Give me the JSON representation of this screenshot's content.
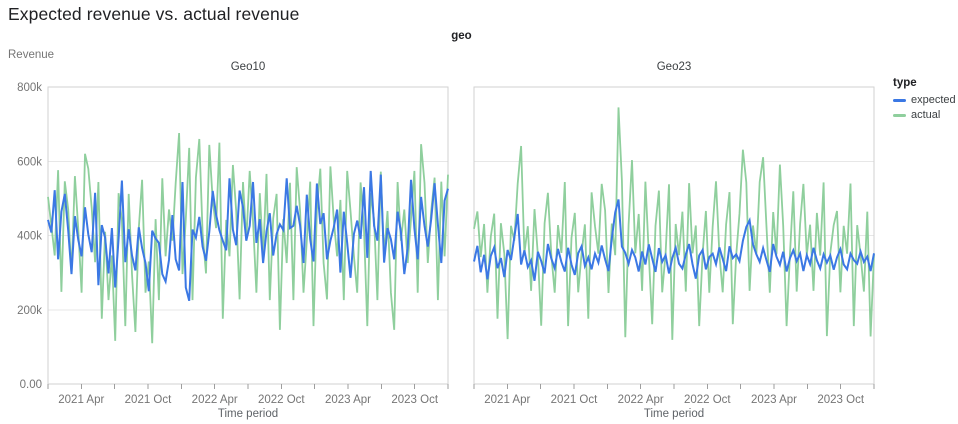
{
  "chart_data": {
    "type": "line",
    "title": "Expected revenue vs. actual revenue",
    "facet_field": "geo",
    "facets": [
      "Geo10",
      "Geo23"
    ],
    "legend_title": "type",
    "legend_position": "top-right",
    "xlabel": "Time period",
    "ylabel": "Revenue",
    "grid": "horizontal",
    "ylim": [
      0,
      800000
    ],
    "y_ticks": [
      {
        "value": 0,
        "label": "0.00"
      },
      {
        "value": 200000,
        "label": "200k"
      },
      {
        "value": 400000,
        "label": "400k"
      },
      {
        "value": 600000,
        "label": "600k"
      },
      {
        "value": 800000,
        "label": "800k"
      }
    ],
    "x_domain": [
      "2021-01",
      "2024-01"
    ],
    "x_minor_tick_every_months": 3,
    "x_label_months": [
      3,
      9,
      15,
      21,
      27,
      33
    ],
    "x_tick_labels": [
      "2021 Apr",
      "2021 Oct",
      "2022 Apr",
      "2022 Oct",
      "2023 Apr",
      "2023 Oct"
    ],
    "series": [
      {
        "name": "expected",
        "color": "#3b78e4"
      },
      {
        "name": "actual",
        "color": "#8fcf9d"
      }
    ],
    "values_unit": "revenue in thousands (k)",
    "points_per_series": 120,
    "panels": [
      {
        "facet": "Geo10",
        "expected": [
          442,
          408,
          522,
          336,
          464,
          512,
          414,
          296,
          452,
          388,
          344,
          476,
          403,
          355,
          515,
          266,
          428,
          394,
          298,
          420,
          260,
          392,
          548,
          328,
          417,
          346,
          306,
          422,
          366,
          326,
          250,
          413,
          392,
          380,
          296,
          276,
          334,
          455,
          336,
          306,
          544,
          260,
          224,
          416,
          394,
          450,
          370,
          332,
          410,
          520,
          456,
          414,
          386,
          360,
          554,
          416,
          374,
          521,
          476,
          386,
          426,
          544,
          380,
          444,
          326,
          411,
          460,
          346,
          404,
          430,
          415,
          554,
          420,
          426,
          480,
          427,
          326,
          510,
          390,
          330,
          540,
          431,
          460,
          336,
          386,
          421,
          470,
          300,
          464,
          380,
          286,
          404,
          440,
          391,
          530,
          340,
          574,
          426,
          386,
          564,
          327,
          420,
          390,
          336,
          464,
          410,
          296,
          366,
          550,
          419,
          336,
          504,
          426,
          370,
          444,
          541,
          430,
          326,
          494,
          526
        ],
        "actual": [
          504,
          426,
          346,
          576,
          248,
          546,
          470,
          296,
          560,
          416,
          246,
          620,
          580,
          474,
          328,
          544,
          176,
          410,
          226,
          346,
          116,
          514,
          440,
          156,
          512,
          296,
          140,
          420,
          550,
          246,
          330,
          110,
          444,
          226,
          554,
          344,
          470,
          386,
          542,
          676,
          296,
          444,
          636,
          226,
          556,
          660,
          406,
          298,
          644,
          496,
          420,
          650,
          176,
          442,
          344,
          590,
          466,
          228,
          544,
          386,
          574,
          440,
          246,
          514,
          345,
          566,
          226,
          446,
          512,
          146,
          444,
          326,
          542,
          226,
          584,
          466,
          246,
          386,
          545,
          156,
          470,
          580,
          326,
          228,
          586,
          444,
          344,
          496,
          226,
          574,
          466,
          345,
          246,
          543,
          416,
          156,
          514,
          442,
          226,
          572,
          344,
          466,
          246,
          146,
          544,
          386,
          470,
          326,
          444,
          574,
          246,
          646,
          542,
          326,
          466,
          556,
          226,
          545,
          344,
          564
        ]
      },
      {
        "facet": "Geo23",
        "expected": [
          330,
          372,
          301,
          348,
          282,
          345,
          368,
          312,
          339,
          288,
          361,
          334,
          395,
          458,
          322,
          360,
          315,
          333,
          278,
          356,
          331,
          298,
          377,
          338,
          312,
          364,
          329,
          303,
          367,
          322,
          294,
          352,
          371,
          318,
          341,
          309,
          351,
          327,
          373,
          336,
          304,
          392,
          462,
          497,
          370,
          353,
          324,
          361,
          341,
          303,
          357,
          322,
          376,
          338,
          302,
          366,
          329,
          347,
          298,
          339,
          367,
          324,
          311,
          349,
          377,
          323,
          284,
          346,
          361,
          309,
          342,
          351,
          323,
          368,
          337,
          304,
          371,
          339,
          349,
          331,
          386,
          423,
          441,
          376,
          349,
          329,
          366,
          334,
          302,
          377,
          343,
          321,
          356,
          303,
          339,
          360,
          331,
          351,
          304,
          347,
          323,
          367,
          333,
          311,
          349,
          327,
          346,
          308,
          341,
          363,
          322,
          309,
          351,
          334,
          324,
          357,
          329,
          343,
          304,
          352
        ],
        "actual": [
          418,
          465,
          342,
          431,
          246,
          397,
          459,
          176,
          433,
          351,
          121,
          426,
          386,
          540,
          641,
          352,
          425,
          251,
          471,
          346,
          157,
          433,
          515,
          349,
          246,
          428,
          353,
          544,
          156,
          394,
          461,
          247,
          352,
          430,
          176,
          516,
          425,
          351,
          539,
          468,
          245,
          432,
          347,
          745,
          548,
          126,
          429,
          603,
          352,
          458,
          251,
          545,
          349,
          161,
          426,
          521,
          247,
          353,
          538,
          119,
          431,
          347,
          464,
          249,
          541,
          352,
          427,
          156,
          351,
          466,
          246,
          425,
          546,
          349,
          247,
          430,
          517,
          161,
          347,
          459,
          631,
          543,
          251,
          427,
          351,
          544,
          611,
          428,
          246,
          463,
          349,
          591,
          426,
          156,
          352,
          519,
          249,
          431,
          539,
          347,
          429,
          251,
          461,
          346,
          543,
          129,
          353,
          428,
          466,
          247,
          426,
          351,
          540,
          156,
          428,
          347,
          249,
          464,
          128,
          349
        ]
      }
    ],
    "style": {
      "panel_border_color": "#d2d2d2",
      "gridline_color": "#e7e7e7",
      "tick_color": "#9e9e9e",
      "axis_text_color": "#757575",
      "title_color": "#202124"
    }
  }
}
